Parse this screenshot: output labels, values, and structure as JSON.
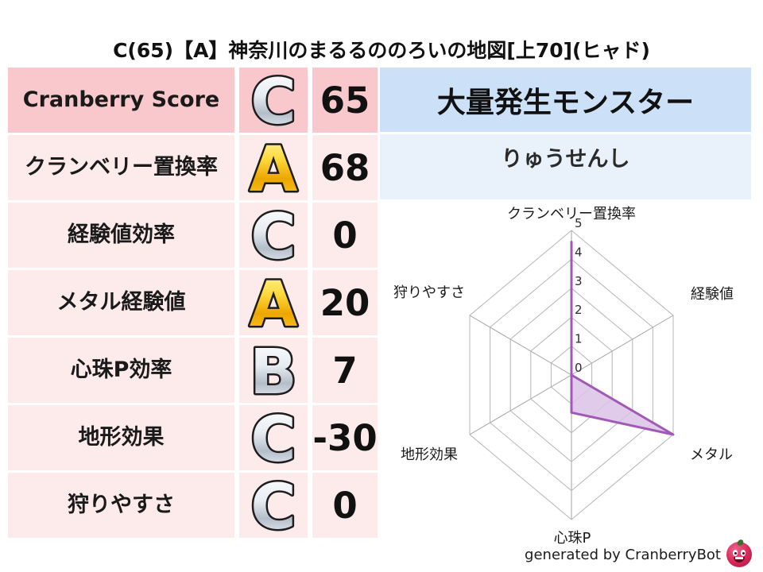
{
  "title": "C(65)【A】神奈川のまるるののろいの地図[上70](ヒャド)",
  "stats_table": {
    "rows": [
      {
        "label": "Cranberry Score",
        "grade": "C",
        "value": "65",
        "highlight": true
      },
      {
        "label": "クランベリー置換率",
        "grade": "A",
        "value": "68",
        "highlight": false
      },
      {
        "label": "経験値効率",
        "grade": "C",
        "value": "0",
        "highlight": false
      },
      {
        "label": "メタル経験値",
        "grade": "A",
        "value": "20",
        "highlight": false
      },
      {
        "label": "心珠P効率",
        "grade": "B",
        "value": "7",
        "highlight": false
      },
      {
        "label": "地形効果",
        "grade": "C",
        "value": "-30",
        "highlight": false
      },
      {
        "label": "狩りやすさ",
        "grade": "C",
        "value": "0",
        "highlight": false
      }
    ]
  },
  "monster_panel": {
    "header": "大量発生モンスター",
    "name": "りゅうせんし"
  },
  "chart_data": {
    "type": "radar",
    "categories": [
      "クランベリー置換率",
      "経験値",
      "メタル",
      "心珠P",
      "地形効果",
      "狩りやすさ"
    ],
    "series": [
      {
        "name": "map-stats",
        "values": [
          4.6,
          0,
          5,
          1.3,
          0,
          0
        ]
      }
    ],
    "ticks": [
      0,
      1,
      2,
      3,
      4,
      5
    ],
    "rmax": 5,
    "grid": true,
    "line_color": "#a159b5",
    "fill_color": "#dcc2e8"
  },
  "footer": {
    "credit": "generated by CranberryBot",
    "logo": "cranberrybot-icon"
  },
  "colors": {
    "row_highlight_bg": "#f8c8cc",
    "row_bg": "#fdeaea",
    "monster_header_bg": "#cce1f7",
    "monster_name_bg": "#e9f2fb",
    "grade_gold": "#f5b300",
    "grade_silver": "#c6cfd8",
    "radar_grid": "#b5b5b5"
  }
}
